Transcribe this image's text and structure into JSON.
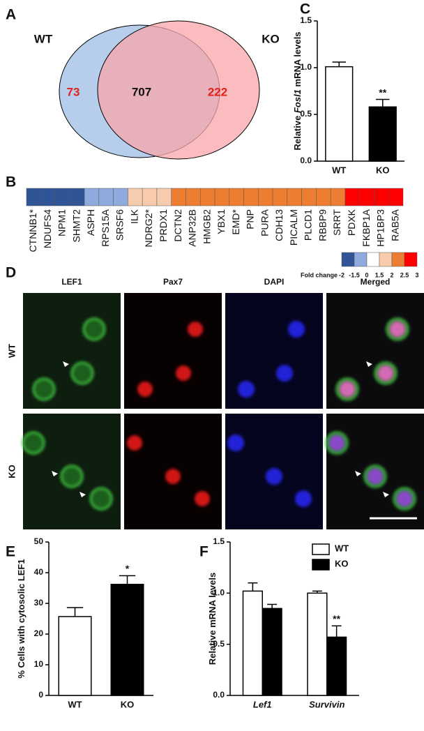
{
  "chart_data": [
    {
      "type": "venn",
      "panel_label": "A",
      "sets": [
        "WT",
        "KO"
      ],
      "values": [
        73,
        707,
        222
      ],
      "colors": [
        "#a9c6e8",
        "#f8a5aa"
      ],
      "value_colors": [
        "#e0201b",
        "#111111",
        "#e0201b"
      ]
    },
    {
      "type": "heatmap",
      "panel_label": "B",
      "categories": [
        "CTNNB1*",
        "NDUFS4",
        "NPM1",
        "SHMT2",
        "ASPH",
        "RPS15A",
        "SRSF6",
        "ILK",
        "NDRG2*",
        "PRDX1",
        "DCTN2",
        "ANP32B",
        "HMGB2",
        "YBX1",
        "EMD*",
        "PNP",
        "PURA",
        "CDH13",
        "PICALM",
        "PLCD1",
        "RBBP9",
        "SRRT",
        "PDXK",
        "FKBP1A",
        "HP1BP3",
        "RAB5A"
      ],
      "values": [
        -2,
        -2,
        -2,
        -2,
        -1.5,
        -1.5,
        -1.5,
        1.5,
        1.5,
        1.5,
        2,
        2,
        2,
        2,
        2,
        2,
        2,
        2,
        2,
        2,
        2,
        2,
        3,
        3,
        3,
        3
      ],
      "colorscale": {
        "label": "Fold change",
        "ticks": [
          -2,
          -1.5,
          0,
          1.5,
          2,
          2.5,
          3
        ],
        "colors": [
          "#2f5597",
          "#8faadc",
          "#ffffff",
          "#f8cbad",
          "#ed7d31",
          "#ff0000"
        ]
      }
    },
    {
      "type": "bar",
      "panel_label": "C",
      "ylabel": [
        "Relative ",
        "Fosl1",
        " mRNA levels"
      ],
      "categories": [
        "WT",
        "KO"
      ],
      "values": [
        1.01,
        0.58
      ],
      "errors": [
        0.05,
        0.08
      ],
      "annotations": [
        null,
        "**"
      ],
      "colors": [
        "#ffffff",
        "#000000"
      ],
      "ylim": [
        0,
        1.5
      ],
      "yticks": [
        {
          "value": 0,
          "label": "0.0"
        },
        0.5,
        {
          "value": 1,
          "label": "1.0"
        },
        1.5
      ]
    },
    {
      "type": "bar",
      "panel_label": "E",
      "ylabel": [
        "% Cells with cytosolic LEF1"
      ],
      "categories": [
        "WT",
        "KO"
      ],
      "values": [
        25.7,
        36.2
      ],
      "errors": [
        2.9,
        2.8
      ],
      "annotations": [
        null,
        "*"
      ],
      "colors": [
        "#ffffff",
        "#000000"
      ],
      "ylim": [
        0,
        50
      ],
      "yticks": [
        0,
        10,
        20,
        30,
        40,
        50
      ]
    },
    {
      "type": "bar",
      "panel_label": "F",
      "ylabel": [
        "Relative mRNA levels"
      ],
      "categories": [
        "Lef1",
        "Survivin"
      ],
      "category_style": "italic",
      "series": [
        {
          "name": "WT",
          "color": "#ffffff",
          "values": [
            1.02,
            1.0
          ],
          "errors": [
            0.08,
            0.02
          ],
          "annotations": [
            null,
            null
          ]
        },
        {
          "name": "KO",
          "color": "#000000",
          "values": [
            0.85,
            0.57
          ],
          "errors": [
            0.04,
            0.11
          ],
          "annotations": [
            null,
            "**"
          ]
        }
      ],
      "legend": "upper right",
      "ylim": [
        0,
        1.5
      ],
      "yticks": [
        {
          "value": 0,
          "label": "0.0"
        },
        0.5,
        {
          "value": 1,
          "label": "1.0"
        },
        1.5
      ]
    }
  ],
  "image_panel": {
    "panel_label": "D",
    "columns": [
      "LEF1",
      "Pax7",
      "DAPI",
      "Merged"
    ],
    "rows": [
      "WT",
      "KO"
    ]
  }
}
